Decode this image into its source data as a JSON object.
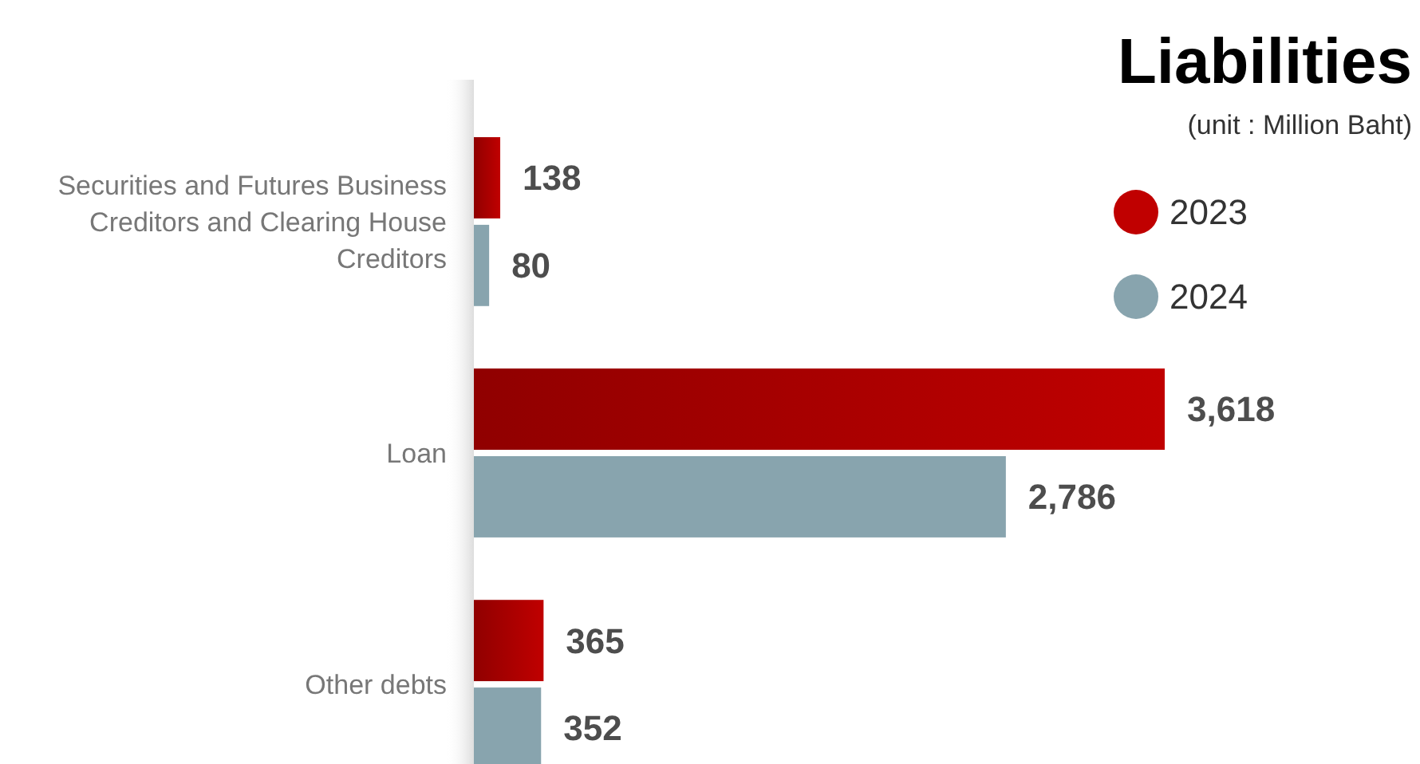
{
  "chart_data": {
    "type": "bar",
    "orientation": "horizontal",
    "title": "Liabilities",
    "subtitle": "(unit : Million Baht)",
    "categories": [
      "Securities and Futures Business Creditors and Clearing House Creditors",
      "Loan",
      "Other debts"
    ],
    "series": [
      {
        "name": "2023",
        "color": "#c00000",
        "values": [
          138,
          3618,
          365
        ],
        "value_labels": [
          "138",
          "3,618",
          "365"
        ]
      },
      {
        "name": "2024",
        "color": "#88a4ae",
        "values": [
          80,
          2786,
          352
        ],
        "value_labels": [
          "80",
          "2,786",
          "352"
        ]
      }
    ],
    "legend": "top right",
    "grid": false
  }
}
